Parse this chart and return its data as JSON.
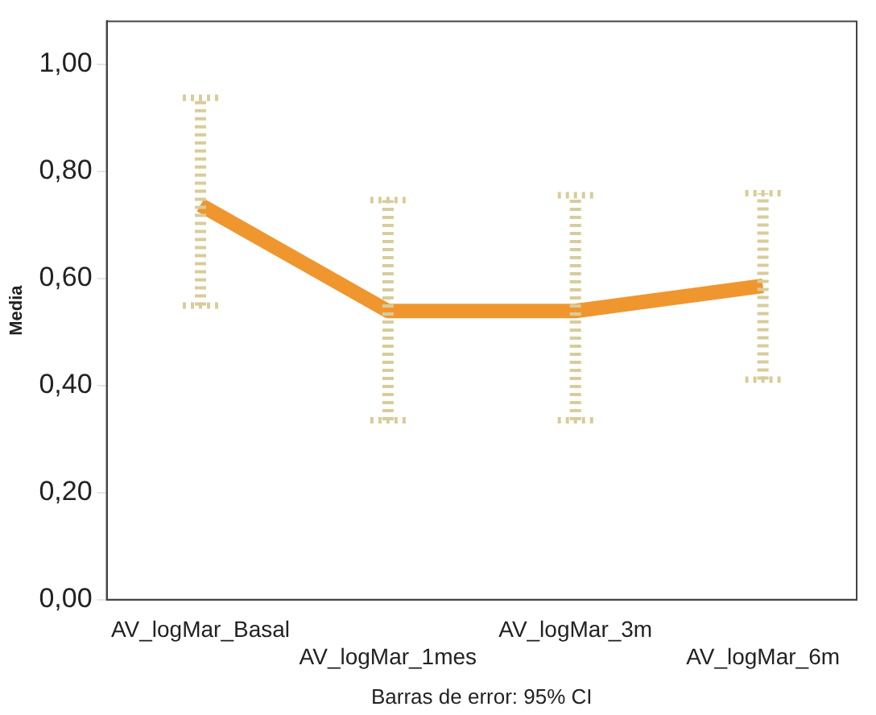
{
  "chart_data": {
    "type": "line",
    "ylabel": "Media",
    "categories": [
      "AV_logMar_Basal",
      "AV_logMar_1mes",
      "AV_logMar_3m",
      "AV_logMar_6m"
    ],
    "series": [
      {
        "color": "#f0962e",
        "values": [
          0.737,
          0.539,
          0.539,
          0.586
        ],
        "errors": [
          [
            0.549,
            0.937
          ],
          [
            0.335,
            0.746
          ],
          [
            0.335,
            0.755
          ],
          [
            0.411,
            0.759
          ]
        ]
      }
    ],
    "ylim": [
      0,
      1.08
    ],
    "yticks": [
      {
        "value": 0,
        "label": "0,00"
      },
      {
        "value": 0.2,
        "label": "0,20"
      },
      {
        "value": 0.4,
        "label": "0,40"
      },
      {
        "value": 0.6,
        "label": "0,60"
      },
      {
        "value": 0.8,
        "label": "0,80"
      },
      {
        "value": 1,
        "label": "1,00"
      }
    ],
    "grid": false,
    "legend": false,
    "marker": "none",
    "line_style": "solid",
    "annotations": [
      "Barras de error: 95% CI"
    ]
  }
}
